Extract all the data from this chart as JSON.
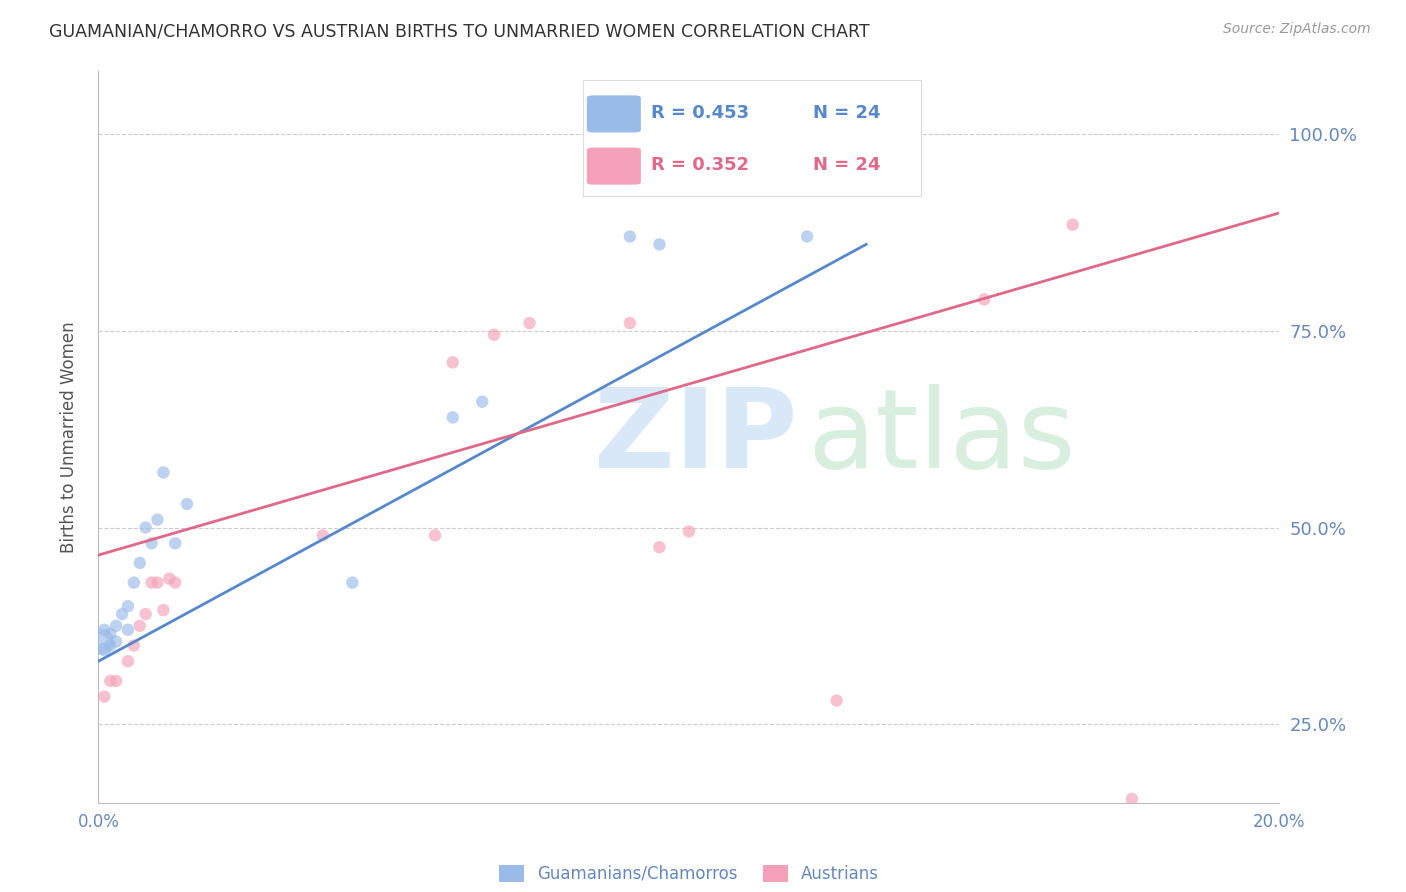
{
  "title": "GUAMANIAN/CHAMORRO VS AUSTRIAN BIRTHS TO UNMARRIED WOMEN CORRELATION CHART",
  "source": "Source: ZipAtlas.com",
  "ylabel": "Births to Unmarried Women",
  "xlim": [
    0.0,
    0.2
  ],
  "ylim": [
    0.15,
    1.08
  ],
  "yticks": [
    0.25,
    0.5,
    0.75,
    1.0
  ],
  "ytick_labels": [
    "25.0%",
    "50.0%",
    "75.0%",
    "100.0%"
  ],
  "blue_color": "#99BBE8",
  "pink_color": "#F4A0B8",
  "blue_line_color": "#5588CC",
  "pink_line_color": "#E06888",
  "guam_x": [
    0.0005,
    0.001,
    0.001,
    0.002,
    0.002,
    0.003,
    0.003,
    0.004,
    0.005,
    0.005,
    0.006,
    0.007,
    0.008,
    0.009,
    0.01,
    0.011,
    0.013,
    0.015,
    0.043,
    0.06,
    0.065,
    0.09,
    0.095,
    0.12
  ],
  "guam_y": [
    0.355,
    0.345,
    0.37,
    0.35,
    0.365,
    0.355,
    0.375,
    0.39,
    0.37,
    0.4,
    0.43,
    0.455,
    0.5,
    0.48,
    0.51,
    0.57,
    0.48,
    0.53,
    0.43,
    0.64,
    0.66,
    0.87,
    0.86,
    0.87
  ],
  "guam_sizes": [
    350,
    100,
    80,
    80,
    80,
    80,
    80,
    80,
    80,
    80,
    80,
    80,
    80,
    80,
    80,
    80,
    80,
    80,
    80,
    80,
    80,
    80,
    80,
    80
  ],
  "austrian_x": [
    0.001,
    0.002,
    0.003,
    0.005,
    0.006,
    0.007,
    0.008,
    0.009,
    0.01,
    0.011,
    0.012,
    0.013,
    0.038,
    0.057,
    0.06,
    0.067,
    0.073,
    0.09,
    0.095,
    0.1,
    0.125,
    0.15,
    0.165,
    0.175
  ],
  "austrian_y": [
    0.285,
    0.305,
    0.305,
    0.33,
    0.35,
    0.375,
    0.39,
    0.43,
    0.43,
    0.395,
    0.435,
    0.43,
    0.49,
    0.49,
    0.71,
    0.745,
    0.76,
    0.76,
    0.475,
    0.495,
    0.28,
    0.79,
    0.885,
    0.155
  ],
  "austrian_sizes": [
    80,
    80,
    80,
    80,
    80,
    80,
    80,
    80,
    80,
    80,
    80,
    80,
    80,
    80,
    80,
    80,
    80,
    80,
    80,
    80,
    80,
    80,
    80,
    80
  ],
  "blue_line_x0": 0.0,
  "blue_line_y0": 0.33,
  "blue_line_x1": 0.13,
  "blue_line_y1": 0.86,
  "pink_line_x0": 0.0,
  "pink_line_y0": 0.465,
  "pink_line_x1": 0.2,
  "pink_line_y1": 0.9,
  "background_color": "#FFFFFF",
  "grid_color": "#CCCCCC"
}
